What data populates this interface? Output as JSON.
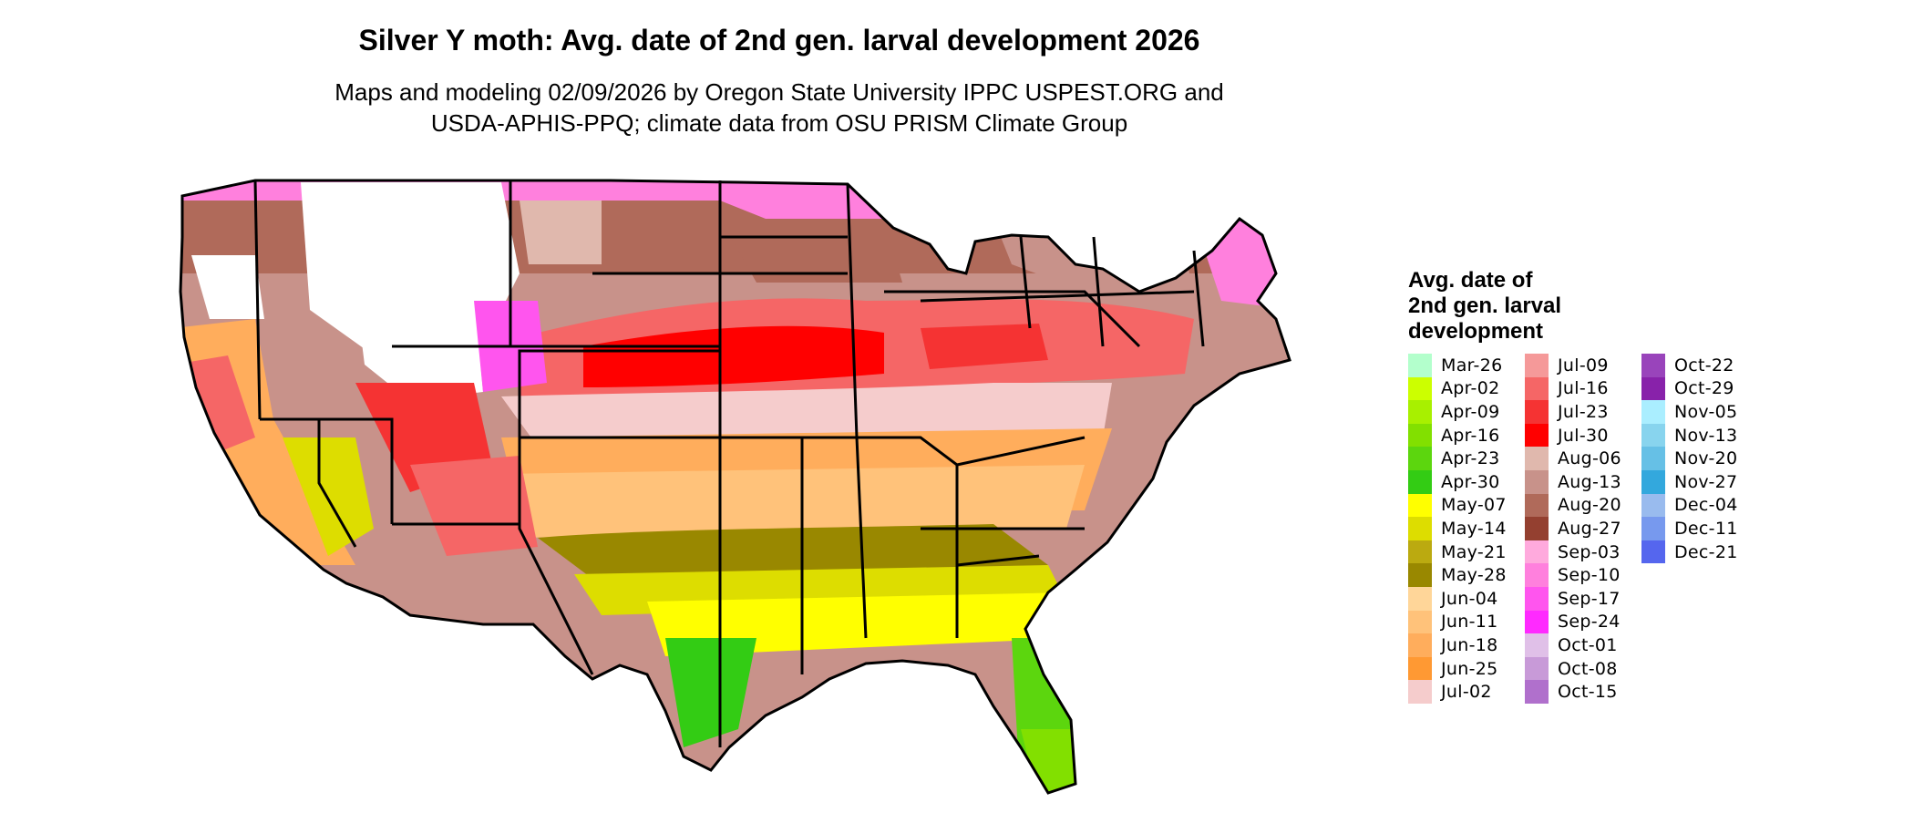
{
  "title": "Silver Y moth: Avg. date of 2nd gen. larval development 2026",
  "subtitle_line1": "Maps and modeling 02/09/2026 by Oregon State University IPPC USPEST.ORG and",
  "subtitle_line2": "USDA-APHIS-PPQ; climate data from OSU PRISM Climate Group",
  "legend": {
    "title_lines": [
      "Avg. date of",
      "2nd gen. larval",
      "development"
    ],
    "columns": [
      [
        {
          "label": "Mar-26",
          "color": "#b3ffcc"
        },
        {
          "label": "Apr-02",
          "color": "#ccff00"
        },
        {
          "label": "Apr-09",
          "color": "#a8f000"
        },
        {
          "label": "Apr-16",
          "color": "#82e000"
        },
        {
          "label": "Apr-23",
          "color": "#5cd60e"
        },
        {
          "label": "Apr-30",
          "color": "#33cc14"
        },
        {
          "label": "May-07",
          "color": "#ffff00"
        },
        {
          "label": "May-14",
          "color": "#dddd00"
        },
        {
          "label": "May-21",
          "color": "#bbaa10"
        },
        {
          "label": "May-28",
          "color": "#998800"
        },
        {
          "label": "Jun-04",
          "color": "#ffd699"
        },
        {
          "label": "Jun-11",
          "color": "#ffc27a"
        },
        {
          "label": "Jun-18",
          "color": "#ffad5c"
        },
        {
          "label": "Jun-25",
          "color": "#ff9933"
        },
        {
          "label": "Jul-02",
          "color": "#f5cccc"
        }
      ],
      [
        {
          "label": "Jul-09",
          "color": "#f59999"
        },
        {
          "label": "Jul-16",
          "color": "#f56666"
        },
        {
          "label": "Jul-23",
          "color": "#f53333"
        },
        {
          "label": "Jul-30",
          "color": "#ff0000"
        },
        {
          "label": "Aug-06",
          "color": "#e0b8ad"
        },
        {
          "label": "Aug-13",
          "color": "#c8928a"
        },
        {
          "label": "Aug-20",
          "color": "#b06a5a"
        },
        {
          "label": "Aug-27",
          "color": "#944030"
        },
        {
          "label": "Sep-03",
          "color": "#ffaadd"
        },
        {
          "label": "Sep-10",
          "color": "#ff80dd"
        },
        {
          "label": "Sep-17",
          "color": "#ff55ee"
        },
        {
          "label": "Sep-24",
          "color": "#ff2aff"
        },
        {
          "label": "Oct-01",
          "color": "#e0c0e8"
        },
        {
          "label": "Oct-08",
          "color": "#c89ad8"
        },
        {
          "label": "Oct-15",
          "color": "#b070cc"
        }
      ],
      [
        {
          "label": "Oct-22",
          "color": "#9944bb"
        },
        {
          "label": "Oct-29",
          "color": "#8822aa"
        },
        {
          "label": "Nov-05",
          "color": "#aaeeff"
        },
        {
          "label": "Nov-13",
          "color": "#88d4ee"
        },
        {
          "label": "Nov-20",
          "color": "#66c0e6"
        },
        {
          "label": "Nov-27",
          "color": "#33a8dd"
        },
        {
          "label": "Dec-04",
          "color": "#99bbee"
        },
        {
          "label": "Dec-11",
          "color": "#7799ee"
        },
        {
          "label": "Dec-21",
          "color": "#5566ee"
        }
      ]
    ]
  }
}
